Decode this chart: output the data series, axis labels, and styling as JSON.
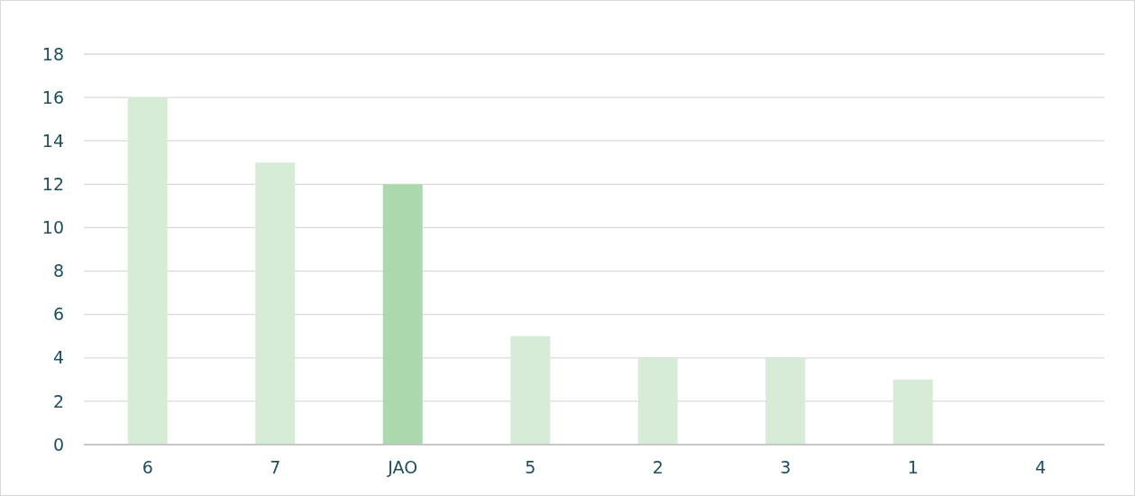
{
  "chart_data": {
    "type": "bar",
    "categories": [
      "6",
      "7",
      "JAO",
      "5",
      "2",
      "3",
      "1",
      "4"
    ],
    "values": [
      16,
      13,
      12,
      5,
      4,
      4,
      3,
      0
    ],
    "colors": [
      "#d6ecd7",
      "#d6ecd7",
      "#acd8ae",
      "#d6ecd7",
      "#d6ecd7",
      "#d6ecd7",
      "#d6ecd7",
      "#d6ecd7"
    ],
    "ylim": [
      0,
      18
    ],
    "yticks": [
      0,
      2,
      4,
      6,
      8,
      10,
      12,
      14,
      16,
      18
    ],
    "grid": "y"
  }
}
